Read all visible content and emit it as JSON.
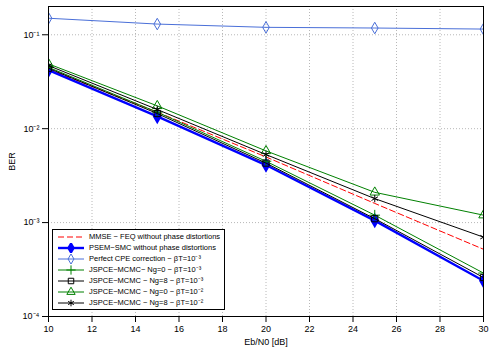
{
  "chart_data": {
    "type": "line",
    "x_label": "Eb/N0 [dB]",
    "y_label": "BER",
    "log": "y",
    "grid": true,
    "legend": "lower left",
    "x": [
      10,
      15,
      20,
      25,
      30
    ],
    "xlim": [
      10,
      30
    ],
    "xticks": [
      10,
      12,
      14,
      16,
      18,
      20,
      22,
      24,
      26,
      28,
      30
    ],
    "ylim": [
      0.0001,
      0.2
    ],
    "yticks": [
      {
        "value": 0.0001,
        "label": "10⁻⁴"
      },
      {
        "value": 0.001,
        "label": "10⁻³"
      },
      {
        "value": 0.01,
        "label": "10⁻²"
      },
      {
        "value": 0.1,
        "label": "10⁻¹"
      }
    ],
    "series": [
      {
        "name": "MMSE − FEQ without phase distortions",
        "color": "#ff0000",
        "line_style": "dashed",
        "marker": "none",
        "values": [
          0.043,
          0.015,
          0.005,
          0.0016,
          0.00052
        ]
      },
      {
        "name": "PSEM−SMC without phase distortions",
        "color": "#0000ff",
        "line_style": "solid",
        "marker": "diamond",
        "values": [
          0.042,
          0.0135,
          0.0041,
          0.00105,
          0.00024
        ]
      },
      {
        "name": "Perfect CPE correction − βT=10⁻³",
        "color": "#4a6fd8",
        "line_style": "solid",
        "marker": "diamond",
        "values": [
          0.15,
          0.13,
          0.12,
          0.118,
          0.115
        ]
      },
      {
        "name": "JSPCE−MCMC− Ng=0 − βT=10⁻³",
        "color": "#008000",
        "line_style": "solid",
        "marker": "plus",
        "values": [
          0.045,
          0.015,
          0.0045,
          0.0012,
          0.00029
        ]
      },
      {
        "name": "JSPCE−MCMC − Ng=8 − βT=10⁻³",
        "color": "#000000",
        "line_style": "solid",
        "marker": "square",
        "values": [
          0.044,
          0.0145,
          0.0043,
          0.0011,
          0.00026
        ]
      },
      {
        "name": "JSPCE−MCMC − Ng=0 − βT=10⁻²",
        "color": "#008000",
        "line_style": "solid",
        "marker": "triangle",
        "values": [
          0.049,
          0.0175,
          0.0058,
          0.0021,
          0.0012
        ]
      },
      {
        "name": "JSPCE−MCMC − Ng=8 − βT=10⁻²",
        "color": "#000000",
        "line_style": "solid",
        "marker": "star",
        "values": [
          0.047,
          0.016,
          0.0053,
          0.0018,
          0.0007
        ]
      }
    ]
  }
}
